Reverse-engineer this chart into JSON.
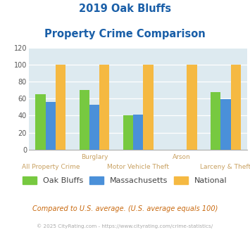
{
  "title_line1": "2019 Oak Bluffs",
  "title_line2": "Property Crime Comparison",
  "oak_bluffs": [
    65,
    70,
    40,
    0,
    68
  ],
  "massachusetts": [
    56,
    53,
    41,
    0,
    59
  ],
  "national": [
    100,
    100,
    100,
    100,
    100
  ],
  "color_oak": "#77c940",
  "color_mass": "#4a90d9",
  "color_nat": "#f5b942",
  "bg_color": "#ddeaf0",
  "title_color": "#1a5fa8",
  "label_color": "#c8a060",
  "ylim": [
    0,
    120
  ],
  "yticks": [
    0,
    20,
    40,
    60,
    80,
    100,
    120
  ],
  "legend_labels": [
    "Oak Bluffs",
    "Massachusetts",
    "National"
  ],
  "footer": "Compared to U.S. average. (U.S. average equals 100)",
  "copyright": "© 2025 CityRating.com - https://www.cityrating.com/crime-statistics/"
}
